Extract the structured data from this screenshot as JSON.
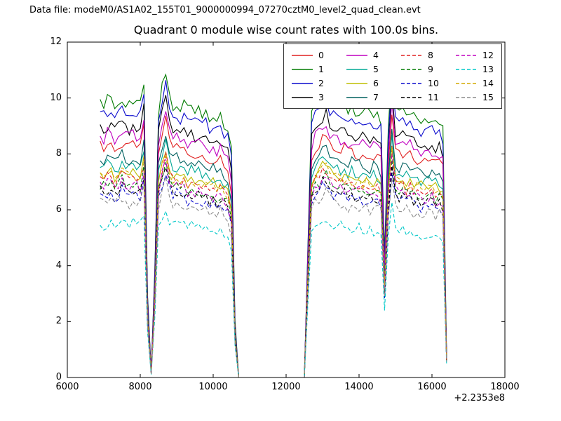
{
  "figure": {
    "header": "Data file: modeM0/AS1A02_155T01_9000000994_07270cztM0_level2_quad_clean.evt",
    "title": "Quadrant 0 module wise count rates with 100.0s bins.",
    "x_offset_label": "+2.2353e8",
    "background_color": "#ffffff",
    "text_color": "#000000"
  },
  "chart_data": {
    "type": "line",
    "title": "Quadrant 0 module wise count rates with 100.0s bins.",
    "xlabel": "",
    "ylabel": "",
    "xlim": [
      6000,
      18000
    ],
    "ylim": [
      0,
      12
    ],
    "x_ticks": [
      6000,
      8000,
      10000,
      12000,
      14000,
      16000,
      18000
    ],
    "x_tick_labels": [
      "6000",
      "8000",
      "10000",
      "12000",
      "14000",
      "16000",
      "18000"
    ],
    "y_ticks": [
      0,
      2,
      4,
      6,
      8,
      10,
      12
    ],
    "y_tick_labels": [
      "0",
      "2",
      "4",
      "6",
      "8",
      "10",
      "12"
    ],
    "x_axis_offset": "+2.2353e8",
    "grid": false,
    "legend_position": "upper right",
    "legend_ncol": 4,
    "bin_seconds": 100.0,
    "sampling": {
      "x_start": 6900,
      "x_step": 100,
      "n_points": 96
    },
    "envelope": [
      1.0,
      0.99,
      1.01,
      1.0,
      0.98,
      1.0,
      1.02,
      1.0,
      0.99,
      1.01,
      1.0,
      0.99,
      1.08,
      0.3,
      0.02,
      0.4,
      0.97,
      1.06,
      1.12,
      1.02,
      0.99,
      1.0,
      0.98,
      0.99,
      0.97,
      0.98,
      0.96,
      0.97,
      0.95,
      0.96,
      0.94,
      0.95,
      0.93,
      0.94,
      0.92,
      0.91,
      0.82,
      0.2,
      0.0,
      0.0,
      0.0,
      0.0,
      0.0,
      0.0,
      0.0,
      0.0,
      0.0,
      0.0,
      0.0,
      0.0,
      0.0,
      0.0,
      0.0,
      0.0,
      0.0,
      0.0,
      0.0,
      0.5,
      0.96,
      1.0,
      1.01,
      1.04,
      1.05,
      1.01,
      0.99,
      1.0,
      0.98,
      0.99,
      0.97,
      0.98,
      0.96,
      0.97,
      0.96,
      0.97,
      0.95,
      0.96,
      0.95,
      0.94,
      0.45,
      0.9,
      1.15,
      0.98,
      0.96,
      0.97,
      0.95,
      0.96,
      0.94,
      0.95,
      0.93,
      0.94,
      0.93,
      0.94,
      0.92,
      0.93,
      0.9,
      0.09
    ],
    "noise_amp": 0.22,
    "y_model": "count_rate per module ≈ level × envelope ± noise_amp jitter",
    "features": {
      "zero_gaps_x": [
        [
          8250,
          8450
        ],
        [
          10650,
          12550
        ]
      ],
      "spikes_x": [
        8700,
        14900
      ],
      "dip_x": 14700,
      "data_start_x": 6900,
      "data_end_x": 16400
    },
    "series": [
      {
        "name": "0",
        "color": "#e02020",
        "style": "solid",
        "level": 8.25
      },
      {
        "name": "1",
        "color": "#007a00",
        "style": "solid",
        "level": 9.85
      },
      {
        "name": "2",
        "color": "#0a0acd",
        "style": "solid",
        "level": 9.45
      },
      {
        "name": "3",
        "color": "#000000",
        "style": "solid",
        "level": 8.95
      },
      {
        "name": "4",
        "color": "#c000c0",
        "style": "solid",
        "level": 8.65
      },
      {
        "name": "5",
        "color": "#00a896",
        "style": "solid",
        "level": 7.55
      },
      {
        "name": "6",
        "color": "#bdbd00",
        "style": "solid",
        "level": 7.35
      },
      {
        "name": "7",
        "color": "#00605f",
        "style": "solid",
        "level": 7.85
      },
      {
        "name": "8",
        "color": "#e02020",
        "style": "dashed",
        "level": 7.1
      },
      {
        "name": "9",
        "color": "#007a00",
        "style": "dashed",
        "level": 6.9
      },
      {
        "name": "10",
        "color": "#0a0acd",
        "style": "dashed",
        "level": 6.55
      },
      {
        "name": "11",
        "color": "#000000",
        "style": "dashed",
        "level": 6.7
      },
      {
        "name": "12",
        "color": "#c000c0",
        "style": "dashed",
        "level": 6.85
      },
      {
        "name": "13",
        "color": "#00c8c8",
        "style": "dashed",
        "level": 5.5
      },
      {
        "name": "14",
        "color": "#d4aa00",
        "style": "dashed",
        "level": 7.2
      },
      {
        "name": "15",
        "color": "#8c8c8c",
        "style": "dashed",
        "level": 6.3
      }
    ]
  }
}
